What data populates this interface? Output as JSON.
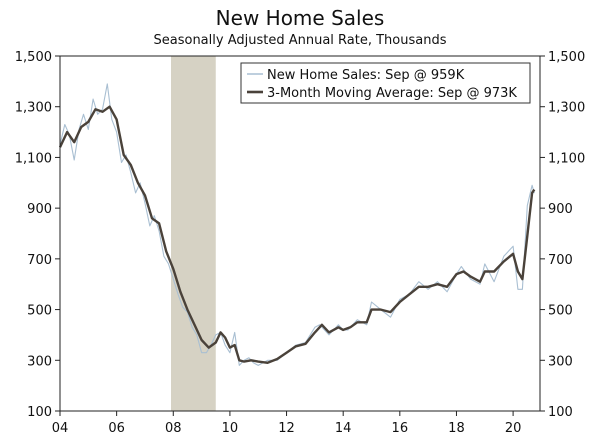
{
  "chart_data": {
    "type": "line",
    "title": "New Home Sales",
    "subtitle": "Seasonally Adjusted Annual Rate, Thousands",
    "xlabel": "",
    "ylabel": "",
    "xlim": [
      2004,
      2020.95
    ],
    "ylim": [
      100,
      1500
    ],
    "y_ticks": [
      100,
      300,
      500,
      700,
      900,
      1100,
      1300,
      1500
    ],
    "y_tick_labels": [
      "100",
      "300",
      "500",
      "700",
      "900",
      "1,100",
      "1,300",
      "1,500"
    ],
    "x_ticks": [
      2004,
      2006,
      2008,
      2010,
      2012,
      2014,
      2016,
      2018,
      2020
    ],
    "x_tick_labels": [
      "04",
      "06",
      "08",
      "10",
      "12",
      "14",
      "16",
      "18",
      "20"
    ],
    "recession": {
      "start": 2007.92,
      "end": 2009.5
    },
    "colors": {
      "monthly": "#a9bfd2",
      "average": "#4a423a",
      "recession": "#d6d2c4",
      "axis": "#222222"
    },
    "legend_position": "top-right",
    "series": [
      {
        "name": "New Home Sales: Sep @ 959K",
        "points": [
          [
            2004.0,
            1150
          ],
          [
            2004.17,
            1230
          ],
          [
            2004.33,
            1190
          ],
          [
            2004.5,
            1090
          ],
          [
            2004.67,
            1210
          ],
          [
            2004.83,
            1270
          ],
          [
            2005.0,
            1210
          ],
          [
            2005.17,
            1330
          ],
          [
            2005.33,
            1270
          ],
          [
            2005.5,
            1290
          ],
          [
            2005.67,
            1390
          ],
          [
            2005.83,
            1250
          ],
          [
            2006.0,
            1200
          ],
          [
            2006.17,
            1080
          ],
          [
            2006.33,
            1110
          ],
          [
            2006.5,
            1040
          ],
          [
            2006.67,
            960
          ],
          [
            2006.83,
            1000
          ],
          [
            2007.0,
            920
          ],
          [
            2007.17,
            830
          ],
          [
            2007.33,
            870
          ],
          [
            2007.5,
            810
          ],
          [
            2007.67,
            710
          ],
          [
            2007.83,
            680
          ],
          [
            2008.0,
            620
          ],
          [
            2008.17,
            560
          ],
          [
            2008.33,
            510
          ],
          [
            2008.5,
            490
          ],
          [
            2008.67,
            430
          ],
          [
            2008.83,
            400
          ],
          [
            2009.0,
            330
          ],
          [
            2009.17,
            330
          ],
          [
            2009.33,
            360
          ],
          [
            2009.5,
            400
          ],
          [
            2009.67,
            410
          ],
          [
            2009.83,
            360
          ],
          [
            2010.0,
            330
          ],
          [
            2010.17,
            410
          ],
          [
            2010.33,
            280
          ],
          [
            2010.5,
            300
          ],
          [
            2010.67,
            310
          ],
          [
            2010.83,
            290
          ],
          [
            2011.0,
            280
          ],
          [
            2011.33,
            300
          ],
          [
            2011.67,
            300
          ],
          [
            2012.0,
            330
          ],
          [
            2012.33,
            360
          ],
          [
            2012.67,
            370
          ],
          [
            2013.0,
            430
          ],
          [
            2013.17,
            440
          ],
          [
            2013.5,
            400
          ],
          [
            2013.83,
            440
          ],
          [
            2014.0,
            420
          ],
          [
            2014.17,
            420
          ],
          [
            2014.5,
            460
          ],
          [
            2014.83,
            440
          ],
          [
            2015.0,
            530
          ],
          [
            2015.33,
            500
          ],
          [
            2015.67,
            470
          ],
          [
            2016.0,
            540
          ],
          [
            2016.33,
            560
          ],
          [
            2016.67,
            610
          ],
          [
            2017.0,
            580
          ],
          [
            2017.33,
            610
          ],
          [
            2017.67,
            570
          ],
          [
            2018.0,
            640
          ],
          [
            2018.17,
            670
          ],
          [
            2018.5,
            620
          ],
          [
            2018.83,
            600
          ],
          [
            2019.0,
            680
          ],
          [
            2019.33,
            610
          ],
          [
            2019.67,
            710
          ],
          [
            2020.0,
            750
          ],
          [
            2020.17,
            580
          ],
          [
            2020.33,
            580
          ],
          [
            2020.5,
            910
          ],
          [
            2020.67,
            990
          ],
          [
            2020.75,
            959
          ]
        ]
      },
      {
        "name": "3-Month Moving Average: Sep @ 973K",
        "points": [
          [
            2004.0,
            1140
          ],
          [
            2004.25,
            1200
          ],
          [
            2004.5,
            1160
          ],
          [
            2004.75,
            1220
          ],
          [
            2005.0,
            1240
          ],
          [
            2005.25,
            1290
          ],
          [
            2005.5,
            1280
          ],
          [
            2005.75,
            1300
          ],
          [
            2006.0,
            1250
          ],
          [
            2006.25,
            1110
          ],
          [
            2006.5,
            1070
          ],
          [
            2006.75,
            1000
          ],
          [
            2007.0,
            950
          ],
          [
            2007.25,
            860
          ],
          [
            2007.5,
            840
          ],
          [
            2007.75,
            730
          ],
          [
            2008.0,
            660
          ],
          [
            2008.25,
            570
          ],
          [
            2008.5,
            500
          ],
          [
            2008.75,
            440
          ],
          [
            2009.0,
            380
          ],
          [
            2009.25,
            350
          ],
          [
            2009.5,
            370
          ],
          [
            2009.67,
            410
          ],
          [
            2009.83,
            390
          ],
          [
            2010.0,
            350
          ],
          [
            2010.17,
            360
          ],
          [
            2010.33,
            300
          ],
          [
            2010.5,
            295
          ],
          [
            2010.75,
            300
          ],
          [
            2011.0,
            295
          ],
          [
            2011.33,
            290
          ],
          [
            2011.67,
            305
          ],
          [
            2012.0,
            330
          ],
          [
            2012.33,
            355
          ],
          [
            2012.67,
            365
          ],
          [
            2013.0,
            410
          ],
          [
            2013.25,
            440
          ],
          [
            2013.5,
            410
          ],
          [
            2013.83,
            430
          ],
          [
            2014.0,
            420
          ],
          [
            2014.25,
            430
          ],
          [
            2014.5,
            450
          ],
          [
            2014.83,
            450
          ],
          [
            2015.0,
            500
          ],
          [
            2015.33,
            500
          ],
          [
            2015.67,
            490
          ],
          [
            2016.0,
            530
          ],
          [
            2016.33,
            560
          ],
          [
            2016.67,
            590
          ],
          [
            2017.0,
            590
          ],
          [
            2017.33,
            600
          ],
          [
            2017.67,
            590
          ],
          [
            2018.0,
            640
          ],
          [
            2018.25,
            650
          ],
          [
            2018.5,
            630
          ],
          [
            2018.83,
            610
          ],
          [
            2019.0,
            650
          ],
          [
            2019.33,
            650
          ],
          [
            2019.67,
            690
          ],
          [
            2020.0,
            720
          ],
          [
            2020.17,
            650
          ],
          [
            2020.33,
            620
          ],
          [
            2020.5,
            790
          ],
          [
            2020.67,
            960
          ],
          [
            2020.75,
            973
          ]
        ]
      }
    ]
  }
}
